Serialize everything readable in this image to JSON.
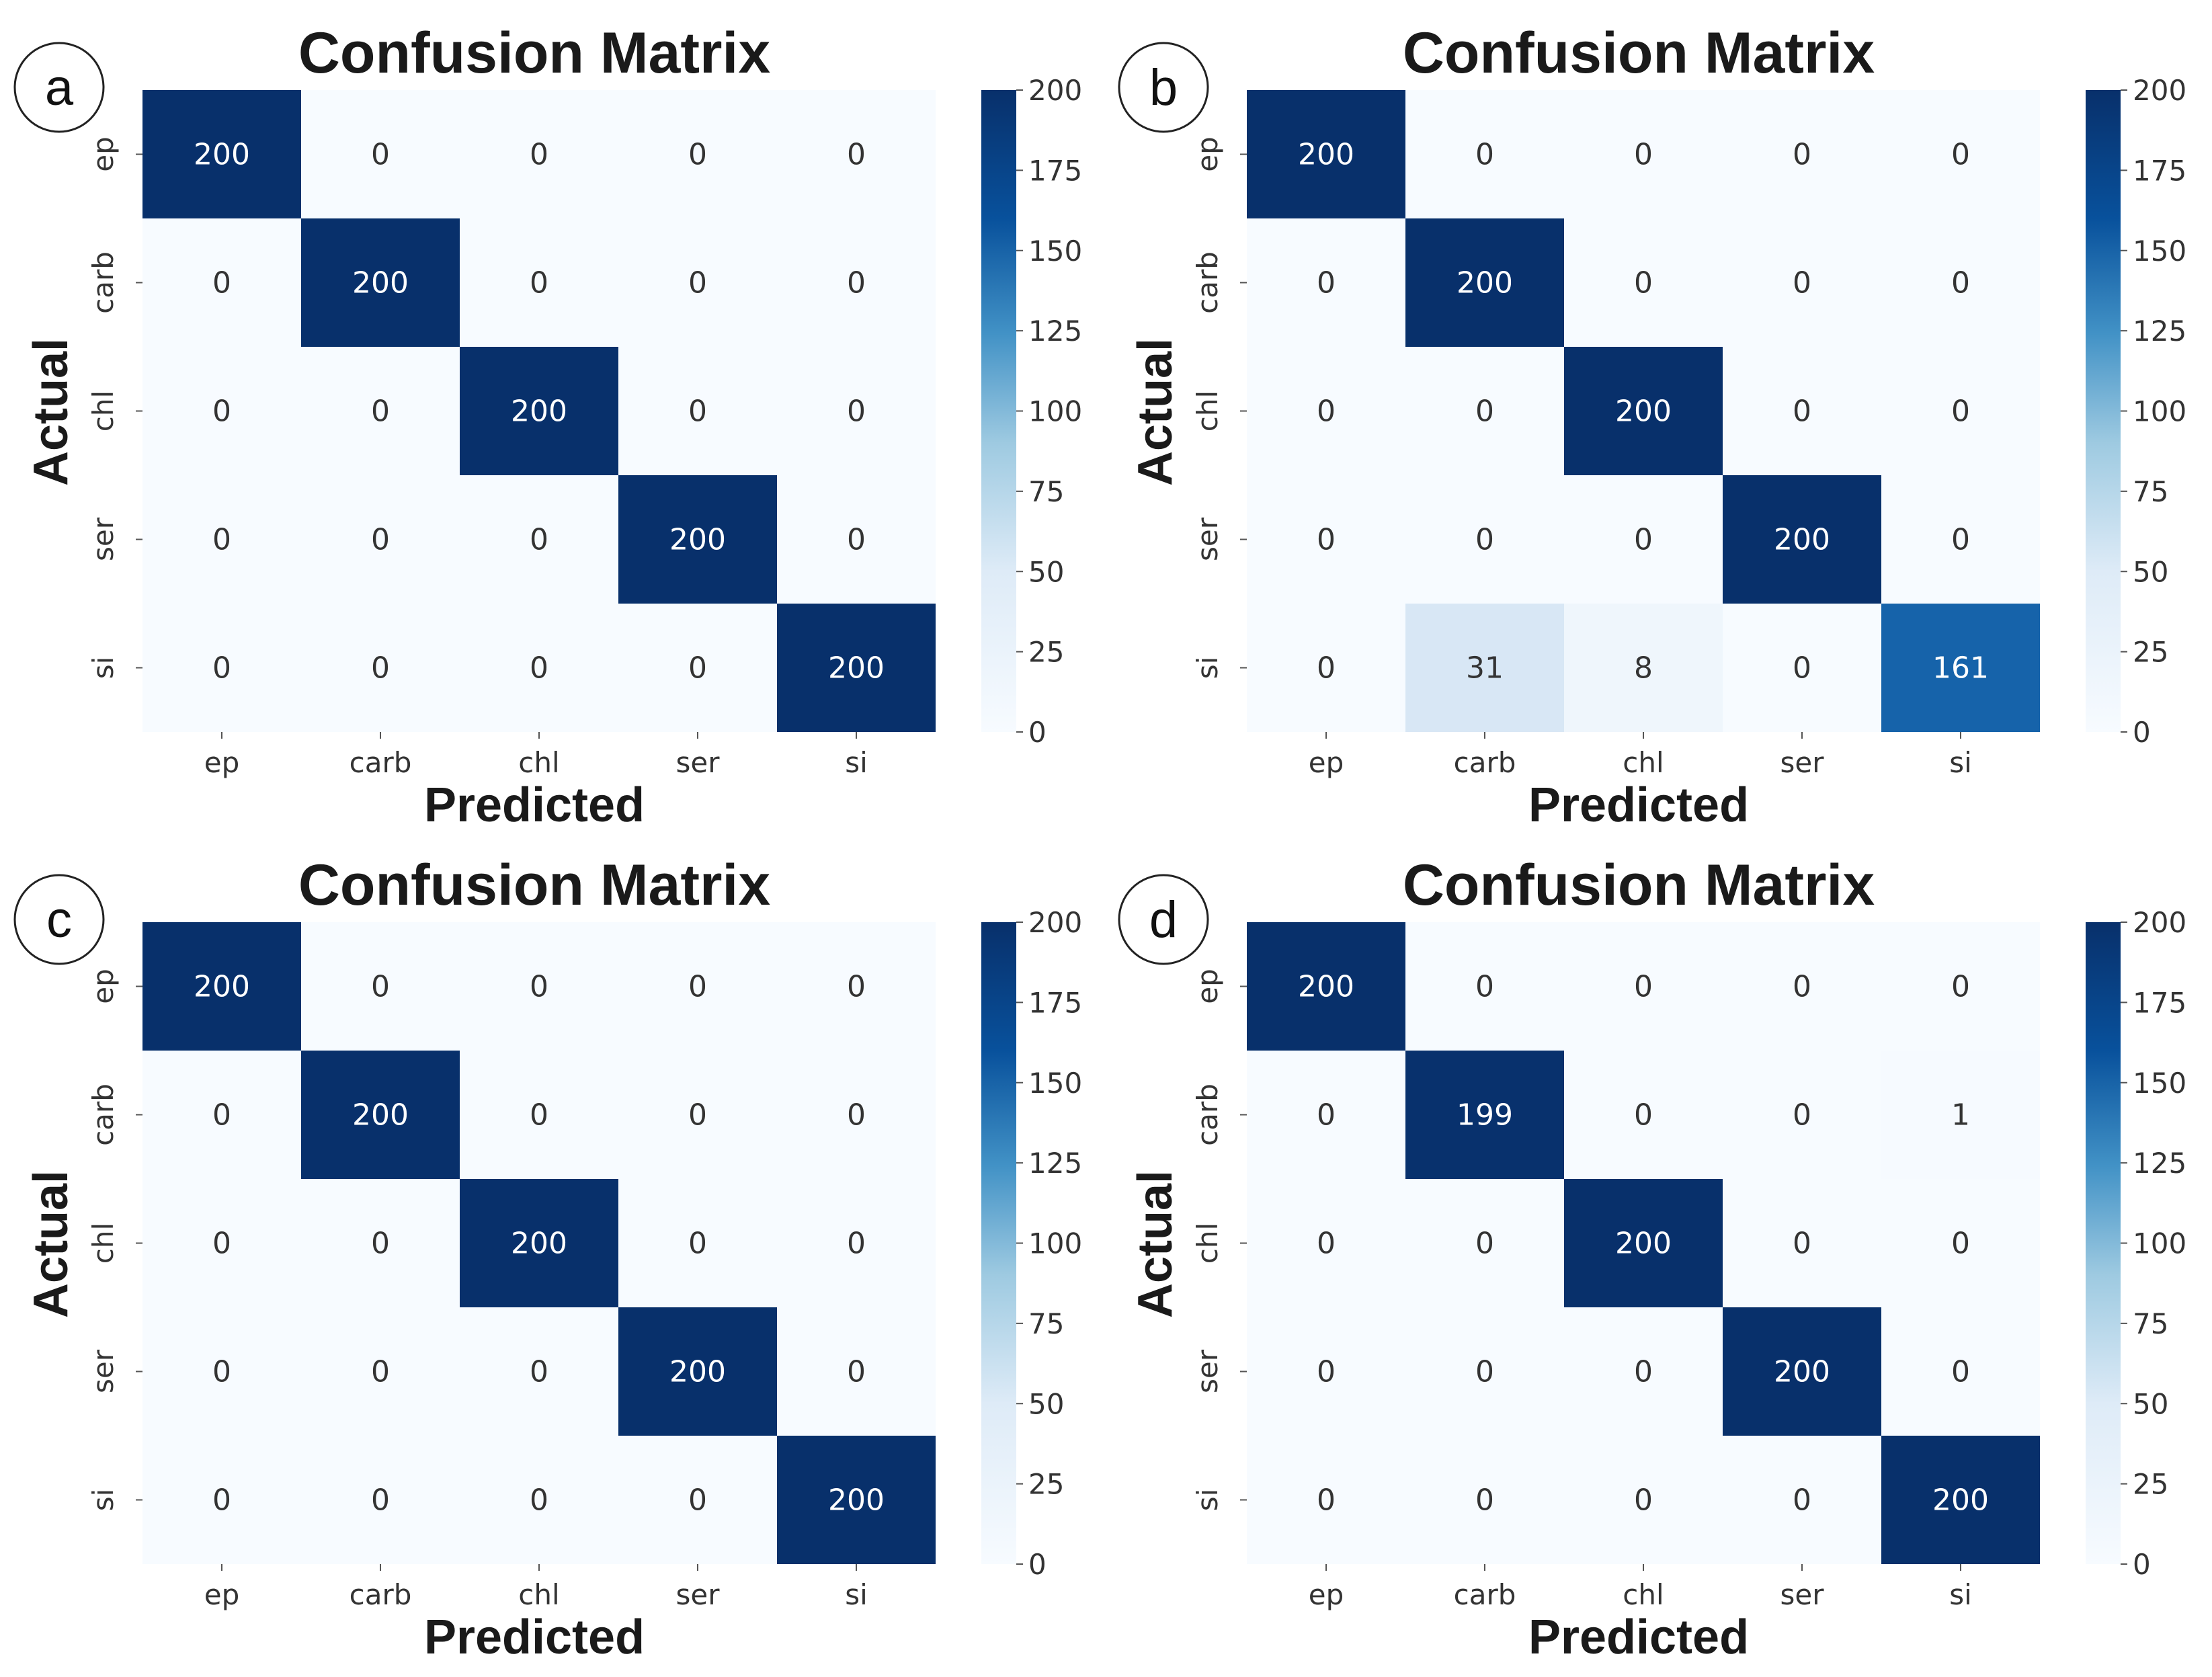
{
  "colors": {
    "cmap_low": "#f7fbff",
    "cmap_mid1": "#c6dbef",
    "cmap_mid2": "#6baed6",
    "cmap_mid3": "#2171b5",
    "cmap_high": "#08306b",
    "text_dark": "#333333",
    "text_light": "#ffffff"
  },
  "chart_data": [
    {
      "type": "heatmap",
      "panel": "a",
      "title": "Confusion Matrix",
      "xlabel": "Predicted",
      "ylabel": "Actual",
      "x_categories": [
        "ep",
        "carb",
        "chl",
        "ser",
        "si"
      ],
      "y_categories": [
        "ep",
        "carb",
        "chl",
        "ser",
        "si"
      ],
      "matrix": [
        [
          200,
          0,
          0,
          0,
          0
        ],
        [
          0,
          200,
          0,
          0,
          0
        ],
        [
          0,
          0,
          200,
          0,
          0
        ],
        [
          0,
          0,
          0,
          200,
          0
        ],
        [
          0,
          0,
          0,
          0,
          200
        ]
      ],
      "colorbar": {
        "min": 0,
        "max": 200,
        "ticks": [
          0,
          25,
          50,
          75,
          100,
          125,
          150,
          175,
          200
        ]
      }
    },
    {
      "type": "heatmap",
      "panel": "b",
      "title": "Confusion Matrix",
      "xlabel": "Predicted",
      "ylabel": "Actual",
      "x_categories": [
        "ep",
        "carb",
        "chl",
        "ser",
        "si"
      ],
      "y_categories": [
        "ep",
        "carb",
        "chl",
        "ser",
        "si"
      ],
      "matrix": [
        [
          200,
          0,
          0,
          0,
          0
        ],
        [
          0,
          200,
          0,
          0,
          0
        ],
        [
          0,
          0,
          200,
          0,
          0
        ],
        [
          0,
          0,
          0,
          200,
          0
        ],
        [
          0,
          31,
          8,
          0,
          161
        ]
      ],
      "colorbar": {
        "min": 0,
        "max": 200,
        "ticks": [
          0,
          25,
          50,
          75,
          100,
          125,
          150,
          175,
          200
        ]
      }
    },
    {
      "type": "heatmap",
      "panel": "c",
      "title": "Confusion Matrix",
      "xlabel": "Predicted",
      "ylabel": "Actual",
      "x_categories": [
        "ep",
        "carb",
        "chl",
        "ser",
        "si"
      ],
      "y_categories": [
        "ep",
        "carb",
        "chl",
        "ser",
        "si"
      ],
      "matrix": [
        [
          200,
          0,
          0,
          0,
          0
        ],
        [
          0,
          200,
          0,
          0,
          0
        ],
        [
          0,
          0,
          200,
          0,
          0
        ],
        [
          0,
          0,
          0,
          200,
          0
        ],
        [
          0,
          0,
          0,
          0,
          200
        ]
      ],
      "colorbar": {
        "min": 0,
        "max": 200,
        "ticks": [
          0,
          25,
          50,
          75,
          100,
          125,
          150,
          175,
          200
        ]
      }
    },
    {
      "type": "heatmap",
      "panel": "d",
      "title": "Confusion Matrix",
      "xlabel": "Predicted",
      "ylabel": "Actual",
      "x_categories": [
        "ep",
        "carb",
        "chl",
        "ser",
        "si"
      ],
      "y_categories": [
        "ep",
        "carb",
        "chl",
        "ser",
        "si"
      ],
      "matrix": [
        [
          200,
          0,
          0,
          0,
          0
        ],
        [
          0,
          199,
          0,
          0,
          1
        ],
        [
          0,
          0,
          200,
          0,
          0
        ],
        [
          0,
          0,
          0,
          200,
          0
        ],
        [
          0,
          0,
          0,
          0,
          200
        ]
      ],
      "colorbar": {
        "min": 0,
        "max": 200,
        "ticks": [
          0,
          25,
          50,
          75,
          100,
          125,
          150,
          175,
          200
        ]
      }
    }
  ]
}
